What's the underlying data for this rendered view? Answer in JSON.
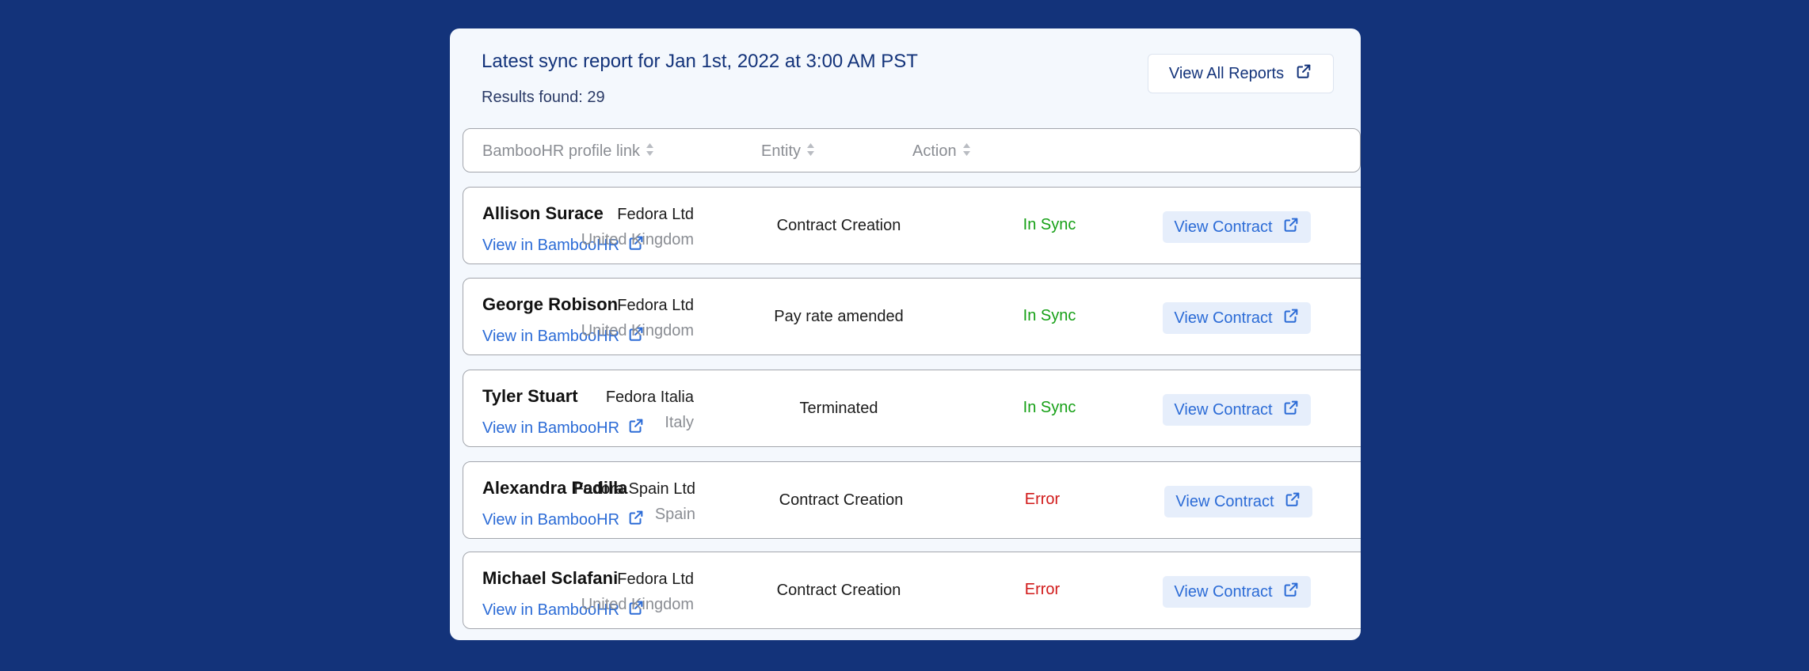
{
  "report": {
    "title": "Latest sync report for Jan 1st, 2022 at 3:00 AM PST",
    "results": "Results found: 29",
    "view_all_label": "View All Reports"
  },
  "columns": {
    "profile": "BambooHR profile link",
    "entity": "Entity",
    "action": "Action"
  },
  "colors": {
    "background": "#13337a",
    "link": "#2b6bd6",
    "in_sync": "#16a016",
    "error": "#d11a1a"
  },
  "icons": [
    "external-link-icon",
    "sort-icon"
  ],
  "rows": [
    {
      "name": "Allison Surace",
      "link_label": "View in BambooHR",
      "entity": "Fedora Ltd",
      "country": "United Kingdom",
      "action": "Contract Creation",
      "status": "In Sync",
      "status_type": "ok",
      "contract_label": "View Contract"
    },
    {
      "name": "George Robison",
      "link_label": "View in BambooHR",
      "entity": "Fedora Ltd",
      "country": "United Kingdom",
      "action": "Pay rate amended",
      "status": "In Sync",
      "status_type": "ok",
      "contract_label": "View Contract"
    },
    {
      "name": "Tyler Stuart",
      "link_label": "View in BambooHR",
      "entity": "Fedora Italia",
      "country": "Italy",
      "action": "Terminated",
      "status": "In Sync",
      "status_type": "ok",
      "contract_label": "View Contract"
    },
    {
      "name": "Alexandra Padilla",
      "link_label": "View in BambooHR",
      "entity": "Fedora Spain Ltd",
      "country": "Spain",
      "action": "Contract Creation",
      "status": "Error",
      "status_type": "error",
      "contract_label": "View Contract"
    },
    {
      "name": "Michael Sclafani",
      "link_label": "View in BambooHR",
      "entity": "Fedora Ltd",
      "country": "United Kingdom",
      "action": "Contract Creation",
      "status": "Error",
      "status_type": "error",
      "contract_label": "View Contract"
    }
  ]
}
